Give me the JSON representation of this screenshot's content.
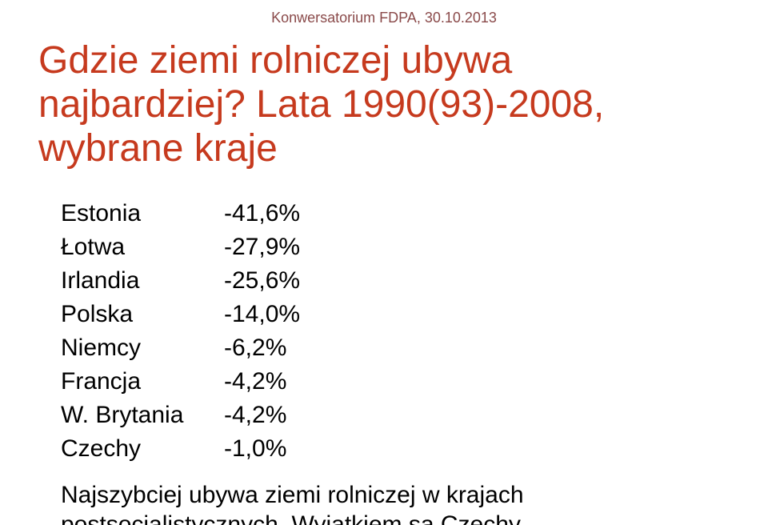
{
  "header": {
    "date_text": "Konwersatorium FDPA, 30.10.2013"
  },
  "title": {
    "line1": "Gdzie ziemi rolniczej ubywa",
    "line2": "najbardziej?",
    "subtitle": " Lata 1990(93)-2008, wybrane kraje"
  },
  "colors": {
    "title_color": "#c63a1e",
    "header_color": "#8a4a4a",
    "text_color": "#000000",
    "background": "#ffffff"
  },
  "typography": {
    "title_fontsize": 48,
    "body_fontsize": 30,
    "header_fontsize": 18
  },
  "table": {
    "rows": [
      {
        "country": "Estonia",
        "value": "-41,6%"
      },
      {
        "country": "Łotwa",
        "value": "-27,9%"
      },
      {
        "country": "Irlandia",
        "value": "-25,6%"
      },
      {
        "country": "Polska",
        "value": "-14,0%"
      },
      {
        "country": "Niemcy",
        "value": "-6,2%"
      },
      {
        "country": "Francja",
        "value": "-4,2%"
      },
      {
        "country": "W. Brytania",
        "value": "-4,2%"
      },
      {
        "country": "Czechy",
        "value": "-1,0%"
      }
    ]
  },
  "note": {
    "text": "Najszybciej ubywa ziemi rolniczej w krajach postsocjalistycznych. Wyjątkiem są Czechy"
  }
}
